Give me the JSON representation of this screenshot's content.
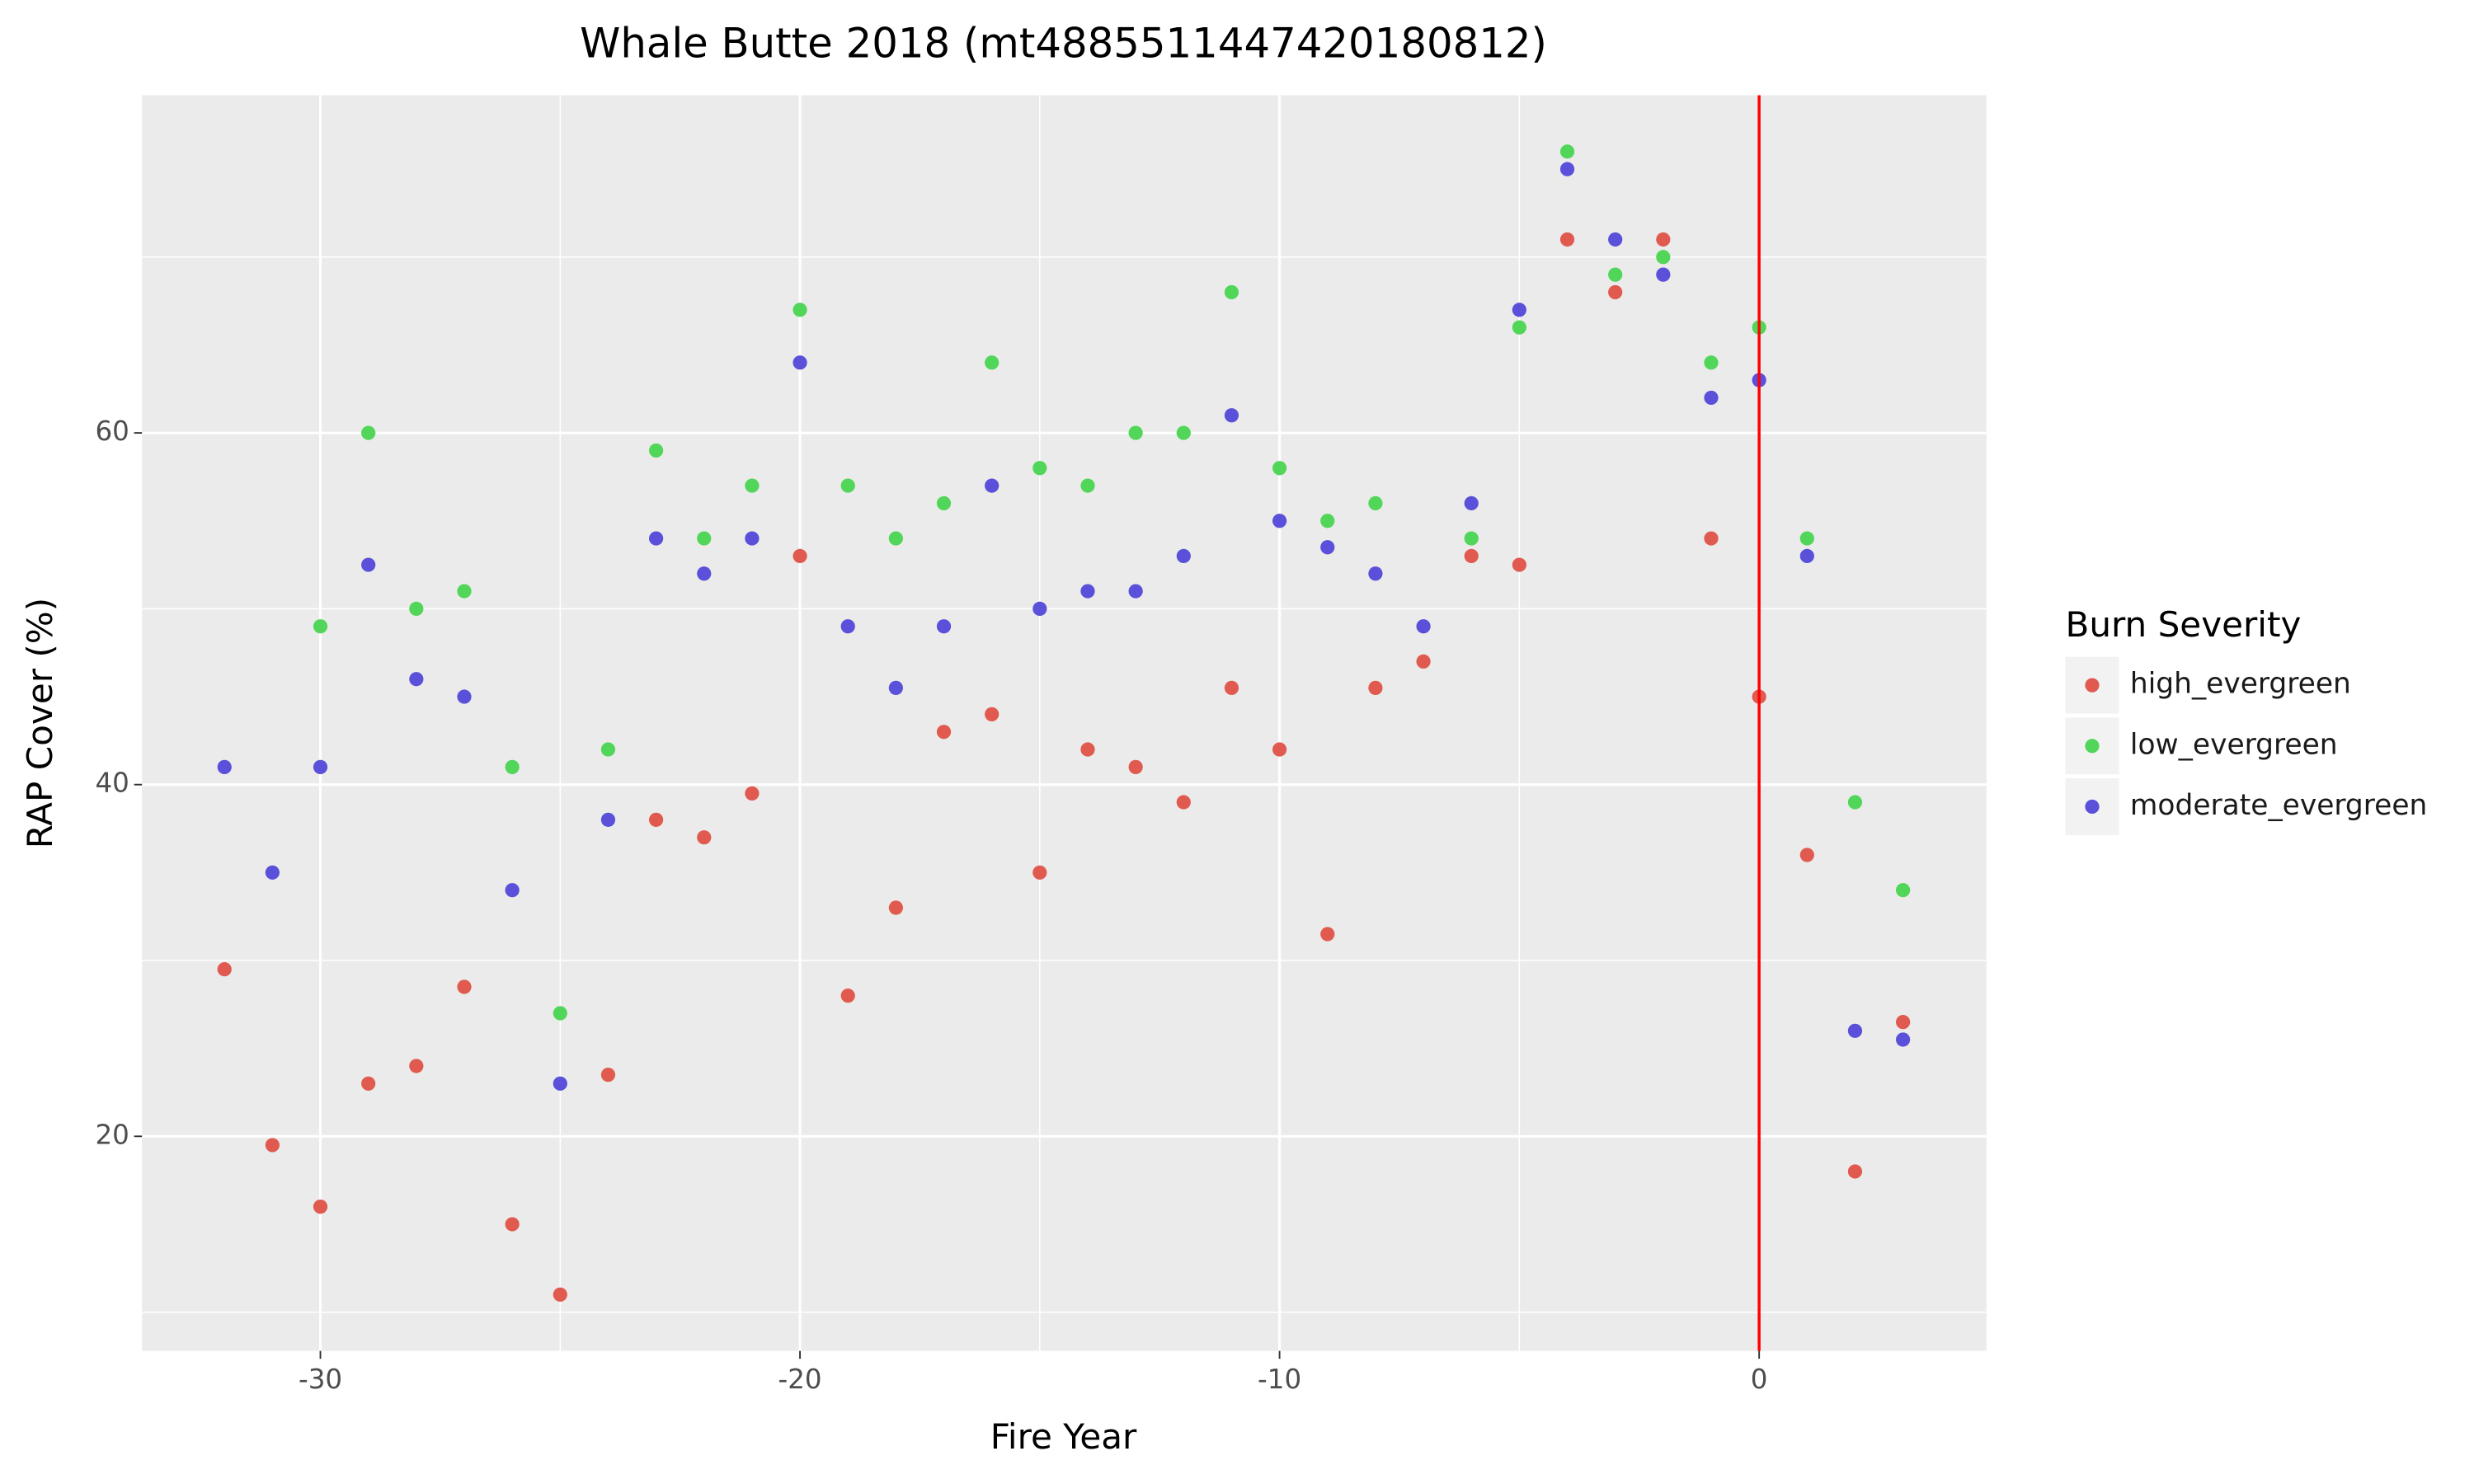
{
  "chart_data": {
    "type": "scatter",
    "title": "Whale Butte 2018 (mt4885511447420180812)",
    "x_label": "Fire Year",
    "y_label": "RAP Cover (%)",
    "xlim": [
      -33.72,
      4.74
    ],
    "ylim": [
      7.8,
      79.2
    ],
    "xticks": [
      -30,
      -20,
      -10,
      0
    ],
    "yticks": [
      20,
      40,
      60
    ],
    "xminor": [
      -25,
      -15,
      -5
    ],
    "yminor": [
      10,
      30,
      50,
      70
    ],
    "grid": true,
    "vline": 0,
    "vline_color": "#ff0000",
    "legend_title": "Burn Severity",
    "legend_position": "right",
    "series": [
      {
        "name": "high_evergreen",
        "color": "#e05a4f",
        "x": [
          -32,
          -31,
          -30,
          -29,
          -28,
          -27,
          -26,
          -25,
          -24,
          -23,
          -22,
          -21,
          -20,
          -19,
          -18,
          -17,
          -16,
          -15,
          -14,
          -13,
          -12,
          -11,
          -10,
          -9,
          -8,
          -7,
          -6,
          -5,
          -4,
          -3,
          -2,
          -1,
          0,
          1,
          2,
          3
        ],
        "values": [
          29.5,
          19.5,
          16,
          23,
          24,
          28.5,
          15,
          11,
          23.5,
          38,
          37,
          39.5,
          53,
          28,
          33,
          43,
          44,
          35,
          42,
          41,
          39,
          45.5,
          42,
          31.5,
          45.5,
          47,
          53,
          52.5,
          71,
          68,
          71,
          54,
          45,
          36,
          18,
          26.5
        ]
      },
      {
        "name": "low_evergreen",
        "color": "#52d65a",
        "x": [
          -30,
          -29,
          -28,
          -27,
          -26,
          -25,
          -24,
          -23,
          -22,
          -21,
          -20,
          -19,
          -18,
          -17,
          -16,
          -15,
          -14,
          -13,
          -12,
          -11,
          -10,
          -9,
          -8,
          -6,
          -5,
          -4,
          -3,
          -2,
          -1,
          0,
          1,
          2,
          3
        ],
        "values": [
          49,
          60,
          50,
          51,
          41,
          27,
          42,
          59,
          54,
          57,
          67,
          57,
          54,
          56,
          64,
          58,
          57,
          60,
          60,
          68,
          58,
          55,
          56,
          54,
          66,
          76,
          69,
          70,
          64,
          66,
          54,
          39,
          34
        ]
      },
      {
        "name": "moderate_evergreen",
        "color": "#5a50d9",
        "x": [
          -32,
          -31,
          -30,
          -29,
          -28,
          -27,
          -26,
          -25,
          -24,
          -23,
          -22,
          -21,
          -20,
          -19,
          -18,
          -17,
          -16,
          -15,
          -14,
          -13,
          -12,
          -11,
          -10,
          -9,
          -8,
          -7,
          -6,
          -5,
          -4,
          -3,
          -2,
          -1,
          0,
          1,
          2,
          3
        ],
        "values": [
          41,
          35,
          41,
          52.5,
          46,
          45,
          34,
          23,
          38,
          54,
          52,
          54,
          64,
          49,
          45.5,
          49,
          57,
          50,
          51,
          51,
          53,
          61,
          55,
          53.5,
          52,
          49,
          56,
          67,
          75,
          71,
          69,
          62,
          63,
          53,
          26,
          25.5
        ]
      }
    ]
  }
}
